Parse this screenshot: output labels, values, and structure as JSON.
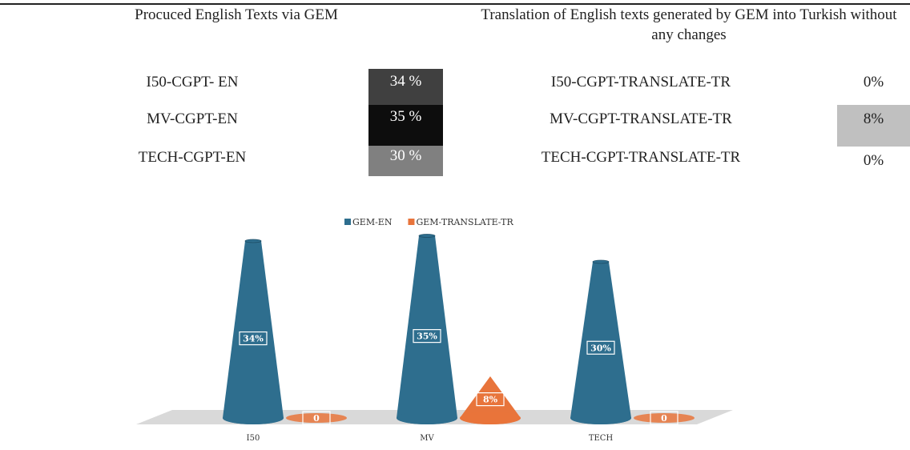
{
  "table": {
    "header": [
      "Procuced English Texts via GEM",
      "Translation of English texts generated by GEM into Turkish without any changes"
    ],
    "rows": [
      [
        "I50-CGPT- EN",
        "34 %",
        "I50-CGPT-TRANSLATE-TR",
        "0%"
      ],
      [
        "MV-CGPT-EN",
        "35 %",
        "MV-CGPT-TRANSLATE-TR",
        "8%"
      ],
      [
        "TECH-CGPT-EN",
        "30 %",
        "TECH-CGPT-TRANSLATE-TR",
        "0%"
      ]
    ]
  },
  "chart_data": {
    "type": "bar",
    "categories": [
      "I50",
      "MV",
      "TECH"
    ],
    "series": [
      {
        "name": "GEM-EN",
        "color": "#2e6e8e",
        "values": [
          34,
          35,
          30
        ],
        "value_labels": [
          "34%",
          "35%",
          "30%"
        ]
      },
      {
        "name": "GEM-TRANSLATE-TR",
        "color": "#e8743b",
        "values": [
          0,
          8,
          0
        ],
        "value_labels": [
          "0",
          "8%",
          "0"
        ]
      }
    ]
  }
}
